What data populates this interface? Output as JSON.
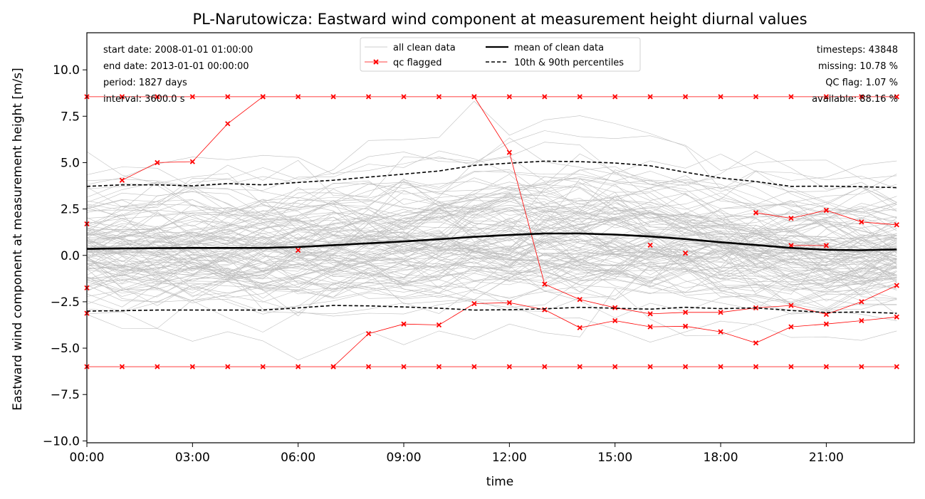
{
  "chart_data": {
    "type": "line",
    "title": "PL-Narutowicza: Eastward wind component at measurement height diurnal values",
    "xlabel": "time",
    "ylabel": "Eastward wind component at measurement height [m/s]",
    "xlim": [
      0,
      23.5
    ],
    "ylim": [
      -10.1,
      12.0
    ],
    "x": [
      0,
      1,
      2,
      3,
      4,
      5,
      6,
      7,
      8,
      9,
      10,
      11,
      12,
      13,
      14,
      15,
      16,
      17,
      18,
      19,
      20,
      21,
      22,
      23
    ],
    "x_ticks": [
      0,
      3,
      6,
      9,
      12,
      15,
      18,
      21
    ],
    "x_tick_labels": [
      "00:00",
      "03:00",
      "06:00",
      "09:00",
      "12:00",
      "15:00",
      "18:00",
      "21:00"
    ],
    "y_ticks": [
      -10.0,
      -7.5,
      -5.0,
      -2.5,
      0.0,
      2.5,
      5.0,
      7.5,
      10.0
    ],
    "y_tick_labels": [
      "−10.0",
      "−7.5",
      "−5.0",
      "−2.5",
      "0.0",
      "2.5",
      "5.0",
      "7.5",
      "10.0"
    ],
    "grid": false,
    "legend_placement": "top-center",
    "legend": [
      {
        "label": "all clean data",
        "style": "thin-grey"
      },
      {
        "label": "mean of clean data",
        "style": "solid-black"
      },
      {
        "label": "qc flagged",
        "style": "red-x"
      },
      {
        "label": "10th & 90th percentiles",
        "style": "dashed-black"
      }
    ],
    "info_left": [
      "start date: 2008-01-01 01:00:00",
      "end date: 2013-01-01 00:00:00",
      "period: 1827 days",
      "interval: 3600.0 s"
    ],
    "info_right": [
      "timesteps: 43848",
      "missing: 10.78 %",
      "QC flag: 1.07 %",
      "available: 88.16 %"
    ],
    "series": [
      {
        "name": "mean of clean data",
        "style": "solid-black",
        "values": [
          0.35,
          0.38,
          0.39,
          0.4,
          0.4,
          0.4,
          0.45,
          0.55,
          0.65,
          0.75,
          0.87,
          1.0,
          1.1,
          1.18,
          1.18,
          1.12,
          1.02,
          0.88,
          0.71,
          0.56,
          0.4,
          0.3,
          0.28,
          0.32
        ]
      },
      {
        "name": "10th & 90th percentiles",
        "style": "dashed-black",
        "values": [
          3.72,
          3.8,
          3.8,
          3.75,
          3.87,
          3.8,
          3.93,
          4.05,
          4.22,
          4.38,
          4.55,
          4.85,
          4.97,
          5.08,
          5.05,
          4.98,
          4.83,
          4.48,
          4.17,
          3.98,
          3.72,
          3.73,
          3.7,
          3.65
        ]
      },
      {
        "name": "10th & 90th percentiles",
        "style": "dashed-black",
        "values": [
          -3.0,
          -2.98,
          -2.95,
          -2.95,
          -2.95,
          -2.95,
          -2.83,
          -2.7,
          -2.72,
          -2.78,
          -2.85,
          -2.95,
          -2.93,
          -2.88,
          -2.8,
          -2.85,
          -2.9,
          -2.8,
          -2.87,
          -2.83,
          -2.97,
          -3.08,
          -3.05,
          -3.12
        ]
      }
    ],
    "clean_data_band": {
      "n_lines": 120,
      "color": "#bfbfbf",
      "min": -10.0,
      "max": 10.0
    },
    "qc_flagged": [
      {
        "x": [
          0,
          1,
          2,
          3,
          4,
          5,
          6,
          7,
          8,
          9,
          10,
          11,
          12,
          13,
          14,
          15,
          16,
          17,
          18,
          19,
          20,
          21,
          22,
          23
        ],
        "y": [
          8.55,
          8.55,
          8.55,
          8.55,
          8.55,
          8.55,
          8.55,
          8.55,
          8.55,
          8.55,
          8.55,
          8.55,
          8.55,
          8.55,
          8.55,
          8.55,
          8.55,
          8.55,
          8.55,
          8.55,
          8.55,
          8.55,
          8.55,
          8.55
        ]
      },
      {
        "x": [
          0,
          1,
          2,
          3,
          4,
          5,
          6,
          7,
          8,
          9,
          10,
          11,
          12,
          13,
          14,
          15,
          16,
          17,
          18,
          19,
          20,
          21,
          22,
          23
        ],
        "y": [
          -6.0,
          -6.0,
          -6.0,
          -6.0,
          -6.0,
          -6.0,
          -6.0,
          -6.0,
          -6.0,
          -6.0,
          -6.0,
          -6.0,
          -6.0,
          -6.0,
          -6.0,
          -6.0,
          -6.0,
          -6.0,
          -6.0,
          -6.0,
          -6.0,
          -6.0,
          -6.0,
          -6.0
        ]
      },
      {
        "x": [
          1,
          2,
          3,
          4,
          5
        ],
        "y": [
          4.05,
          5.0,
          5.05,
          7.1,
          8.55
        ]
      },
      {
        "x": [
          11,
          12,
          13,
          14,
          15,
          16,
          17,
          18,
          19,
          20,
          21,
          22,
          23
        ],
        "y": [
          8.55,
          5.55,
          -1.55,
          -2.38,
          -2.82,
          -3.15,
          -3.07,
          -3.07,
          -2.83,
          -2.7,
          -3.18,
          -2.5,
          -1.62
        ]
      },
      {
        "x": [
          7,
          8,
          9,
          10,
          11,
          12,
          13,
          14,
          15,
          16,
          17,
          18,
          19,
          20,
          21,
          22,
          23
        ],
        "y": [
          -6.0,
          -4.22,
          -3.7,
          -3.75,
          -2.6,
          -2.55,
          -2.93,
          -3.9,
          -3.52,
          -3.85,
          -3.82,
          -4.12,
          -4.72,
          -3.85,
          -3.7,
          -3.52,
          -3.32
        ]
      },
      {
        "x": [
          19,
          20,
          21,
          22,
          23
        ],
        "y": [
          2.3,
          2.0,
          2.43,
          1.8,
          1.65
        ]
      },
      {
        "x": [
          20,
          21
        ],
        "y": [
          0.53,
          0.53
        ]
      },
      {
        "x": [
          0
        ],
        "y": [
          1.7
        ]
      },
      {
        "x": [
          0
        ],
        "y": [
          -1.75
        ]
      },
      {
        "x": [
          0
        ],
        "y": [
          -3.12
        ]
      },
      {
        "x": [
          6
        ],
        "y": [
          0.28
        ]
      },
      {
        "x": [
          16
        ],
        "y": [
          0.55
        ]
      },
      {
        "x": [
          17
        ],
        "y": [
          0.12
        ]
      }
    ]
  }
}
